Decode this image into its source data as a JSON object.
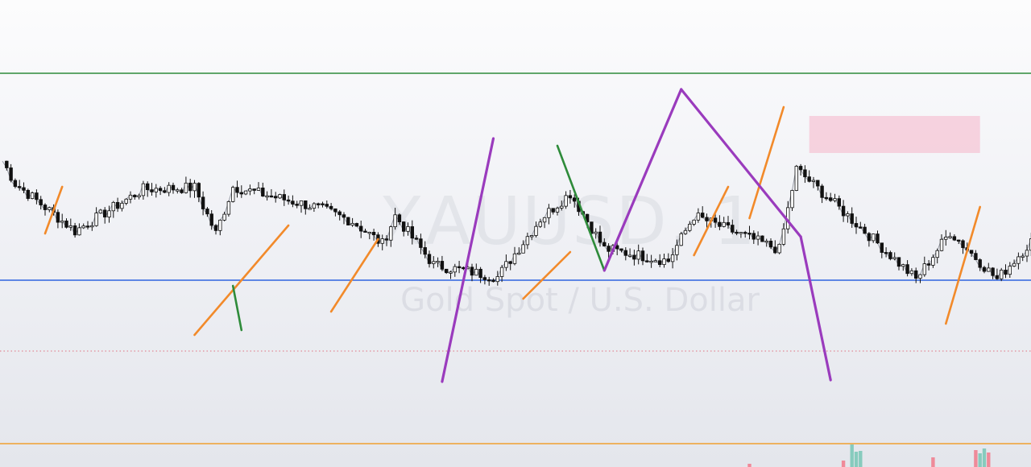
{
  "watermark": {
    "symbol": "XAUUSD, 1",
    "description": "Gold Spot / U.S. Dollar"
  },
  "chart_data": {
    "type": "candlestick",
    "symbol": "XAUUSD",
    "interval": "1",
    "description": "Gold Spot / U.S. Dollar",
    "ylim": [
      0,
      580
    ],
    "colors": {
      "bull_body": "#ffffff",
      "bear_body": "#111111",
      "wick": "#111111",
      "line": "#9a9ea8"
    },
    "horizontal_lines": [
      {
        "name": "green-level",
        "price": 489,
        "color": "#2e8b3a",
        "style": "solid"
      },
      {
        "name": "blue-level",
        "price": 232,
        "color": "#2e63e0",
        "style": "solid"
      },
      {
        "name": "red-dotted-level",
        "price": 144,
        "color": "#e07080",
        "style": "dotted"
      },
      {
        "name": "orange-level",
        "price": 29,
        "color": "#f0a030",
        "style": "solid"
      }
    ],
    "zone": {
      "color": "#f5c6d6",
      "price_top": 436,
      "price_bottom": 390,
      "from_index": 189,
      "to_index": 229
    },
    "path": [
      [
        0,
        380
      ],
      [
        3,
        352
      ],
      [
        17,
        293
      ],
      [
        33,
        345
      ],
      [
        45,
        347
      ],
      [
        50,
        290
      ],
      [
        54,
        348
      ],
      [
        74,
        322
      ],
      [
        82,
        305
      ],
      [
        89,
        277
      ],
      [
        92,
        312
      ],
      [
        101,
        251
      ],
      [
        116,
        236
      ],
      [
        126,
        308
      ],
      [
        133,
        340
      ],
      [
        141,
        271
      ],
      [
        156,
        256
      ],
      [
        162,
        312
      ],
      [
        178,
        278
      ],
      [
        182,
        270
      ],
      [
        186,
        370
      ],
      [
        204,
        283
      ],
      [
        206,
        273
      ],
      [
        214,
        233
      ],
      [
        222,
        292
      ],
      [
        233,
        233
      ],
      [
        245,
        304
      ],
      [
        250,
        367
      ],
      [
        257,
        351
      ],
      [
        263,
        277
      ],
      [
        281,
        405
      ],
      [
        289,
        342
      ],
      [
        305,
        293
      ],
      [
        314,
        327
      ],
      [
        315,
        316
      ],
      [
        335,
        292
      ],
      [
        351,
        221
      ],
      [
        357,
        326
      ],
      [
        361,
        367
      ],
      [
        367,
        363
      ],
      [
        376,
        385
      ],
      [
        381,
        330
      ],
      [
        401,
        152
      ],
      [
        433,
        233
      ],
      [
        451,
        205
      ],
      [
        464,
        255
      ],
      [
        478,
        279
      ],
      [
        481,
        239
      ],
      [
        491,
        249
      ],
      [
        501,
        260
      ],
      [
        517,
        287
      ],
      [
        545,
        398
      ],
      [
        558,
        325
      ],
      [
        566,
        312
      ],
      [
        586,
        146
      ],
      [
        593,
        160
      ],
      [
        605,
        277
      ],
      [
        638,
        268
      ],
      [
        660,
        267
      ],
      [
        684,
        253
      ],
      [
        700,
        310
      ],
      [
        708,
        277
      ],
      [
        710,
        273
      ],
      [
        725,
        226
      ],
      [
        728,
        308
      ],
      [
        738,
        236
      ],
      [
        749,
        245
      ],
      [
        767,
        211
      ],
      [
        777,
        208
      ],
      [
        798,
        189
      ],
      [
        810,
        199
      ],
      [
        815,
        228
      ],
      [
        820,
        248
      ],
      [
        838,
        175
      ],
      [
        843,
        188
      ],
      [
        851,
        239
      ],
      [
        861,
        299
      ],
      [
        877,
        279
      ],
      [
        883,
        255
      ],
      [
        893,
        294
      ],
      [
        923,
        239
      ],
      [
        943,
        227
      ],
      [
        955,
        230
      ],
      [
        963,
        143
      ],
      [
        965,
        151
      ],
      [
        989,
        208
      ],
      [
        996,
        194
      ],
      [
        1006,
        219
      ],
      [
        1041,
        235
      ],
      [
        1079,
        229
      ],
      [
        1116,
        208
      ],
      [
        1134,
        172
      ],
      [
        1140,
        166
      ],
      [
        1159,
        172
      ],
      [
        1187,
        189
      ],
      [
        1198,
        162
      ],
      [
        1213,
        150
      ],
      [
        1216,
        140
      ]
    ],
    "series": [
      {
        "name": "orange",
        "color": "#f28a2a",
        "segments": [
          [
            10,
            290,
            14,
            348
          ],
          [
            45,
            164,
            67,
            300
          ],
          [
            77,
            193,
            88,
            283
          ],
          [
            122,
            209,
            133,
            267
          ],
          [
            162,
            263,
            170,
            348
          ],
          [
            175,
            309,
            183,
            447
          ],
          [
            221,
            178,
            229,
            323
          ]
        ]
      },
      {
        "name": "green",
        "color": "#2e8b3a",
        "segments": [
          [
            54,
            225,
            56,
            170
          ],
          [
            130,
            399,
            141,
            244
          ]
        ]
      },
      {
        "name": "purple",
        "color": "#9a3bbd",
        "segments": [
          [
            103,
            106,
            115,
            408
          ],
          [
            141,
            244,
            159,
            469
          ],
          [
            159,
            469,
            187,
            286
          ],
          [
            187,
            286,
            194,
            108
          ]
        ]
      }
    ]
  }
}
